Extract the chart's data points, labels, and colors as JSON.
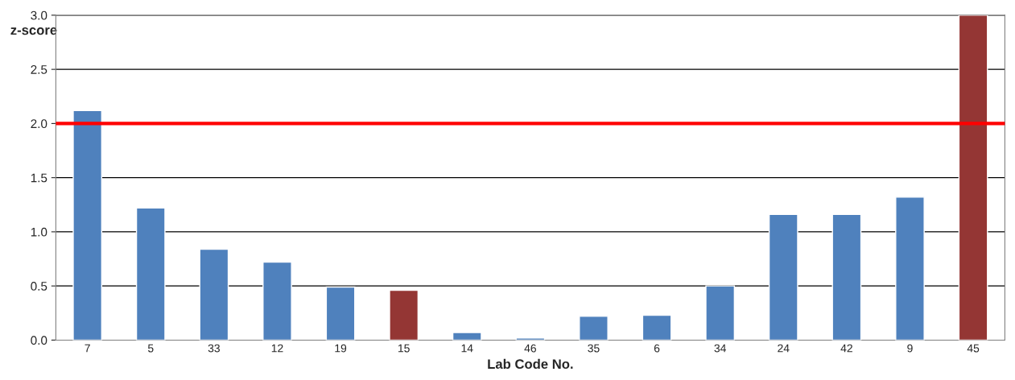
{
  "chart_data": {
    "type": "bar",
    "xlabel": "Lab Code No.",
    "ylabel": "z-score",
    "categories": [
      "7",
      "5",
      "33",
      "12",
      "19",
      "15",
      "14",
      "46",
      "35",
      "6",
      "34",
      "24",
      "42",
      "9",
      "45"
    ],
    "values": [
      2.12,
      1.22,
      0.84,
      0.72,
      0.49,
      0.46,
      0.07,
      0.02,
      0.22,
      0.23,
      0.5,
      1.16,
      1.16,
      1.32,
      3.0
    ],
    "colors": [
      "#4f81bd",
      "#4f81bd",
      "#4f81bd",
      "#4f81bd",
      "#4f81bd",
      "#943634",
      "#4f81bd",
      "#4f81bd",
      "#4f81bd",
      "#4f81bd",
      "#4f81bd",
      "#4f81bd",
      "#4f81bd",
      "#4f81bd",
      "#943634"
    ],
    "ylim": [
      0,
      3.0
    ],
    "yticks": [
      {
        "value": 0,
        "label": "0.0"
      },
      {
        "value": 0.5,
        "label": "0.5"
      },
      {
        "value": 1.0,
        "label": "1.0"
      },
      {
        "value": 1.5,
        "label": "1.5"
      },
      {
        "value": 2.0,
        "label": "2.0"
      },
      {
        "value": 2.5,
        "label": "2.5"
      },
      {
        "value": 3.0,
        "label": "3.0"
      }
    ],
    "grid": "y",
    "legend": false,
    "ref_lines": [
      {
        "axis": "y",
        "value": 2.0,
        "color": "#ff0000",
        "line_style": "solid"
      }
    ]
  }
}
